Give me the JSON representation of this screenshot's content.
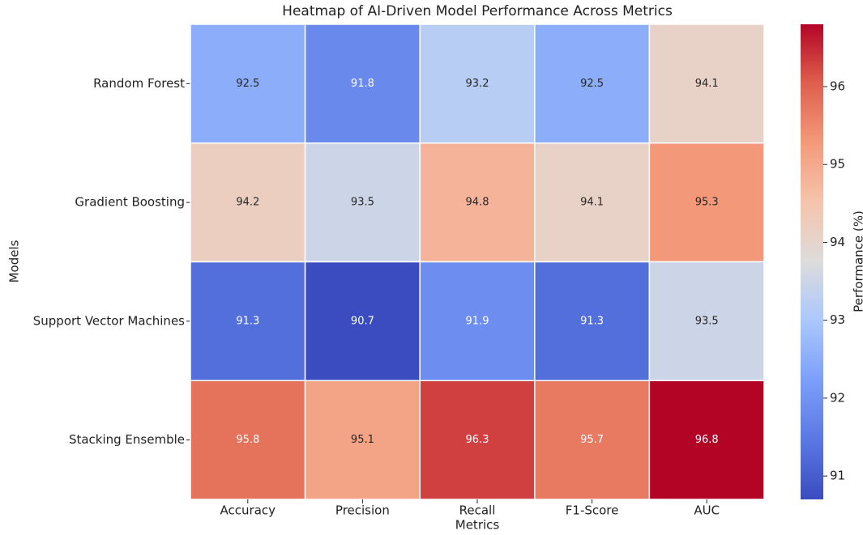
{
  "chart_data": {
    "type": "heatmap",
    "title": "Heatmap of AI-Driven Model Performance Across Metrics",
    "x_label": "Metrics",
    "y_label": "Models",
    "x_categories": [
      "Accuracy",
      "Precision",
      "Recall",
      "F1-Score",
      "AUC"
    ],
    "y_categories": [
      "Random Forest",
      "Gradient Boosting",
      "Support Vector Machines",
      "Stacking Ensemble"
    ],
    "values": [
      [
        92.5,
        91.8,
        93.2,
        92.5,
        94.1
      ],
      [
        94.2,
        93.5,
        94.8,
        94.1,
        95.3
      ],
      [
        91.3,
        90.7,
        91.9,
        91.3,
        93.5
      ],
      [
        95.8,
        95.1,
        96.3,
        95.7,
        96.8
      ]
    ],
    "colormap": "coolwarm",
    "colorbar_label": "Performance (%)",
    "zlim": [
      90.7,
      96.8
    ],
    "colorbar_ticks": [
      91,
      92,
      93,
      94,
      95,
      96
    ]
  }
}
